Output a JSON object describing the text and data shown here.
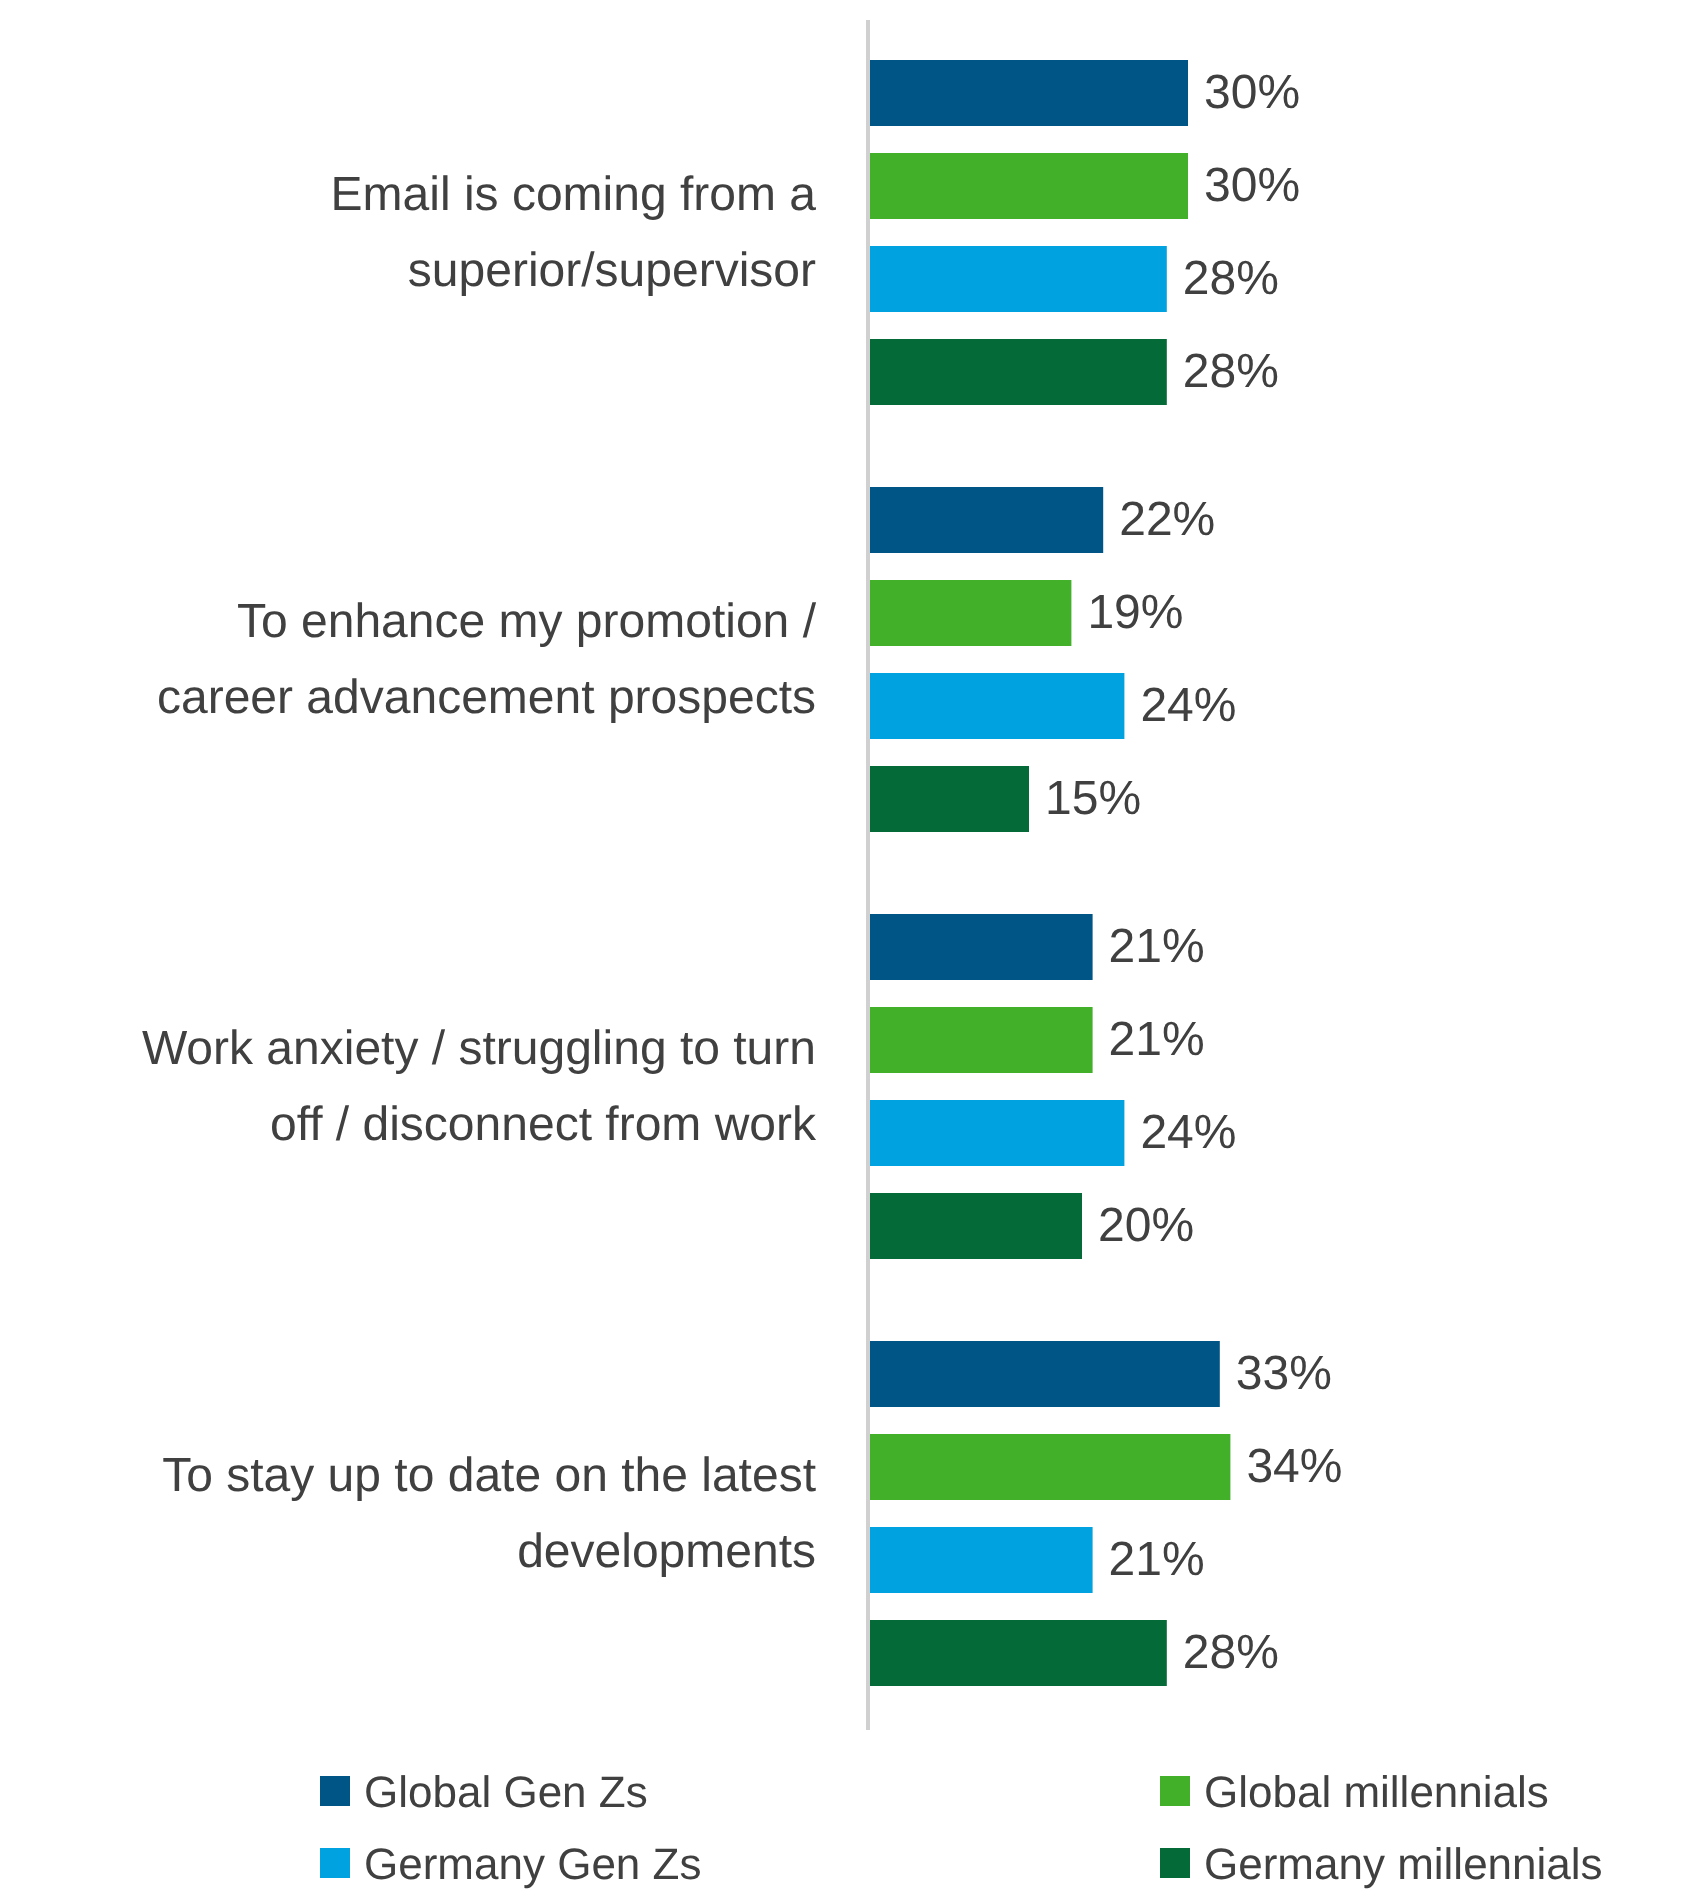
{
  "chart_data": {
    "type": "bar",
    "orientation": "horizontal",
    "categories": [
      "Email is coming from a superior/supervisor",
      "To enhance my promotion / career advancement prospects",
      "Work anxiety / struggling to turn off / disconnect from work",
      "To stay up to date on the latest developments"
    ],
    "series": [
      {
        "name": "Global Gen Zs",
        "color": "#005587",
        "values": [
          30,
          22,
          21,
          33
        ],
        "value_labels": [
          "30%",
          "22%",
          "21%",
          "33%"
        ]
      },
      {
        "name": "Global millennials",
        "color": "#43b02a",
        "values": [
          30,
          19,
          21,
          34
        ],
        "value_labels": [
          "30%",
          "19%",
          "21%",
          "34%"
        ]
      },
      {
        "name": "Germany Gen Zs",
        "color": "#00a3e0",
        "values": [
          28,
          24,
          24,
          21
        ],
        "value_labels": [
          "28%",
          "24%",
          "24%",
          "21%"
        ]
      },
      {
        "name": "Germany millennials",
        "color": "#046a38",
        "values": [
          28,
          15,
          20,
          28
        ],
        "value_labels": [
          "28%",
          "15%",
          "20%",
          "28%"
        ]
      }
    ],
    "legend": "bottom"
  }
}
